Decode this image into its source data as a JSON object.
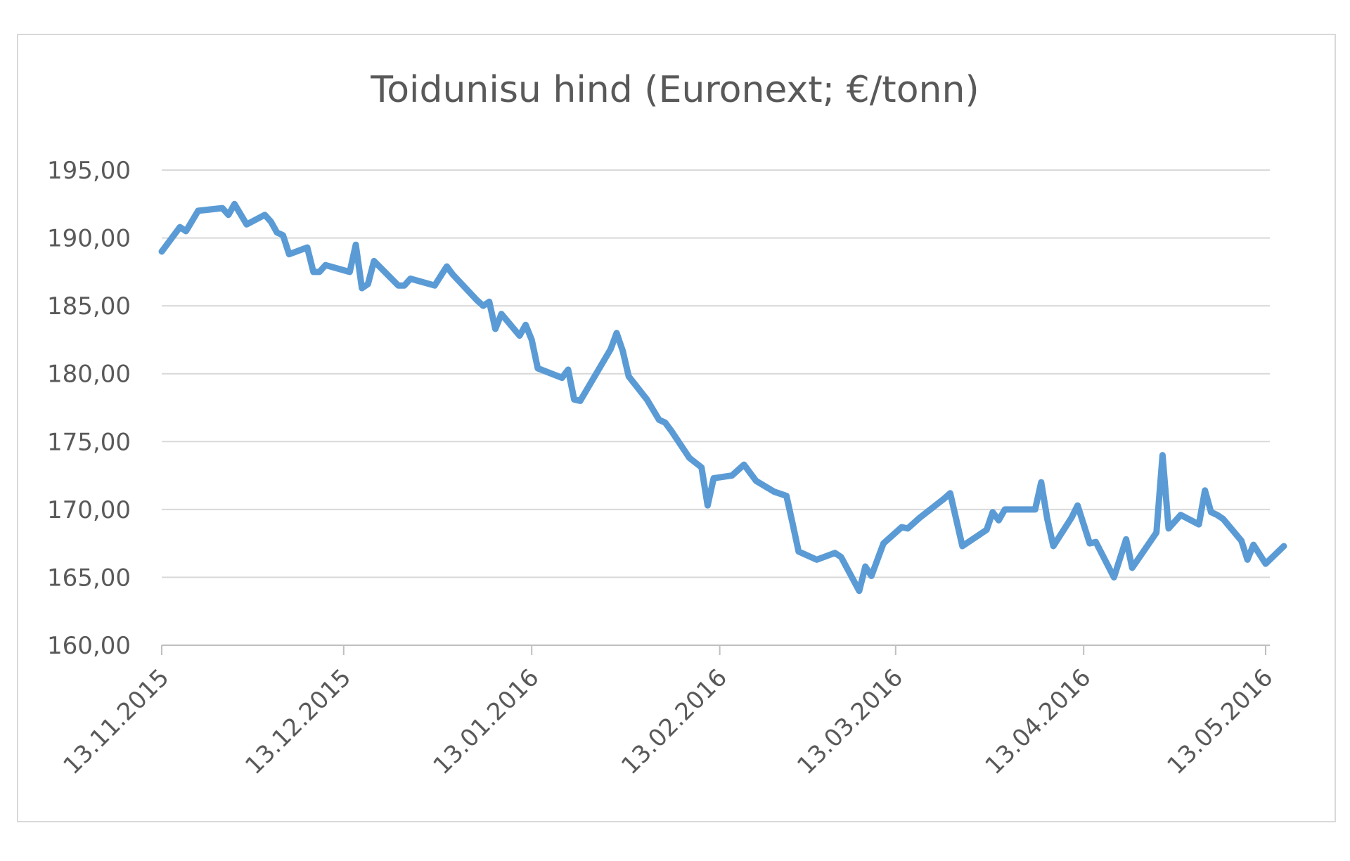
{
  "chart_data": {
    "type": "line",
    "title": "Toidunisu hind (Euronext; €/tonn)",
    "xlabel": "",
    "ylabel": "",
    "ylim": [
      160,
      195
    ],
    "yticks": [
      "195,00",
      "190,00",
      "185,00",
      "180,00",
      "175,00",
      "170,00",
      "165,00",
      "160,00"
    ],
    "ytick_values": [
      195,
      190,
      185,
      180,
      175,
      170,
      165,
      160
    ],
    "xlim": [
      "2015-11-13",
      "2016-05-13"
    ],
    "xticks": [
      {
        "date": "2015-11-13",
        "label": "13.11.2015"
      },
      {
        "date": "2015-12-13",
        "label": "13.12.2015"
      },
      {
        "date": "2016-01-13",
        "label": "13.01.2016"
      },
      {
        "date": "2016-02-13",
        "label": "13.02.2016"
      },
      {
        "date": "2016-03-13",
        "label": "13.03.2016"
      },
      {
        "date": "2016-04-13",
        "label": "13.04.2016"
      },
      {
        "date": "2016-05-13",
        "label": "13.05.2016"
      }
    ],
    "grid": true,
    "line_color": "#5b9bd5",
    "series": [
      {
        "points": [
          [
            "2015-11-13",
            189.0
          ],
          [
            "2015-11-16",
            190.8
          ],
          [
            "2015-11-17",
            190.5
          ],
          [
            "2015-11-19",
            192.0
          ],
          [
            "2015-11-23",
            192.2
          ],
          [
            "2015-11-24",
            191.7
          ],
          [
            "2015-11-25",
            192.5
          ],
          [
            "2015-11-27",
            191.0
          ],
          [
            "2015-11-30",
            191.7
          ],
          [
            "2015-12-01",
            191.2
          ],
          [
            "2015-12-02",
            190.4
          ],
          [
            "2015-12-03",
            190.2
          ],
          [
            "2015-12-04",
            188.8
          ],
          [
            "2015-12-07",
            189.3
          ],
          [
            "2015-12-08",
            187.5
          ],
          [
            "2015-12-09",
            187.5
          ],
          [
            "2015-12-10",
            188.0
          ],
          [
            "2015-12-14",
            187.5
          ],
          [
            "2015-12-15",
            189.5
          ],
          [
            "2015-12-16",
            186.3
          ],
          [
            "2015-12-17",
            186.6
          ],
          [
            "2015-12-18",
            188.3
          ],
          [
            "2015-12-22",
            186.5
          ],
          [
            "2015-12-23",
            186.5
          ],
          [
            "2015-12-24",
            187.0
          ],
          [
            "2015-12-28",
            186.5
          ],
          [
            "2015-12-30",
            187.9
          ],
          [
            "2015-12-31",
            187.3
          ],
          [
            "2016-01-04",
            185.4
          ],
          [
            "2016-01-05",
            185.0
          ],
          [
            "2016-01-06",
            185.3
          ],
          [
            "2016-01-07",
            183.3
          ],
          [
            "2016-01-08",
            184.4
          ],
          [
            "2016-01-11",
            182.8
          ],
          [
            "2016-01-12",
            183.6
          ],
          [
            "2016-01-13",
            182.5
          ],
          [
            "2016-01-14",
            180.4
          ],
          [
            "2016-01-18",
            179.7
          ],
          [
            "2016-01-19",
            180.3
          ],
          [
            "2016-01-20",
            178.1
          ],
          [
            "2016-01-21",
            178.0
          ],
          [
            "2016-01-26",
            181.8
          ],
          [
            "2016-01-27",
            183.0
          ],
          [
            "2016-01-28",
            181.7
          ],
          [
            "2016-01-29",
            179.8
          ],
          [
            "2016-02-01",
            178.1
          ],
          [
            "2016-02-03",
            176.6
          ],
          [
            "2016-02-04",
            176.4
          ],
          [
            "2016-02-05",
            175.8
          ],
          [
            "2016-02-08",
            173.8
          ],
          [
            "2016-02-10",
            173.1
          ],
          [
            "2016-02-11",
            170.3
          ],
          [
            "2016-02-12",
            172.3
          ],
          [
            "2016-02-15",
            172.5
          ],
          [
            "2016-02-17",
            173.3
          ],
          [
            "2016-02-19",
            172.1
          ],
          [
            "2016-02-22",
            171.3
          ],
          [
            "2016-02-24",
            171.0
          ],
          [
            "2016-02-25",
            169.0
          ],
          [
            "2016-02-26",
            166.9
          ],
          [
            "2016-02-29",
            166.3
          ],
          [
            "2016-03-03",
            166.8
          ],
          [
            "2016-03-04",
            166.5
          ],
          [
            "2016-03-07",
            164.0
          ],
          [
            "2016-03-08",
            165.8
          ],
          [
            "2016-03-09",
            165.1
          ],
          [
            "2016-03-11",
            167.5
          ],
          [
            "2016-03-14",
            168.7
          ],
          [
            "2016-03-15",
            168.6
          ],
          [
            "2016-03-17",
            169.4
          ],
          [
            "2016-03-21",
            170.8
          ],
          [
            "2016-03-22",
            171.2
          ],
          [
            "2016-03-24",
            167.3
          ],
          [
            "2016-03-28",
            168.5
          ],
          [
            "2016-03-29",
            169.8
          ],
          [
            "2016-03-30",
            169.2
          ],
          [
            "2016-03-31",
            170.0
          ],
          [
            "2016-04-04",
            170.0
          ],
          [
            "2016-04-05",
            170.0
          ],
          [
            "2016-04-06",
            172.0
          ],
          [
            "2016-04-07",
            169.3
          ],
          [
            "2016-04-08",
            167.3
          ],
          [
            "2016-04-11",
            169.4
          ],
          [
            "2016-04-12",
            170.3
          ],
          [
            "2016-04-14",
            167.5
          ],
          [
            "2016-04-15",
            167.6
          ],
          [
            "2016-04-18",
            165.0
          ],
          [
            "2016-04-20",
            167.8
          ],
          [
            "2016-04-21",
            165.7
          ],
          [
            "2016-04-25",
            168.3
          ],
          [
            "2016-04-26",
            174.0
          ],
          [
            "2016-04-27",
            168.6
          ],
          [
            "2016-04-29",
            169.6
          ],
          [
            "2016-05-02",
            168.9
          ],
          [
            "2016-05-03",
            171.4
          ],
          [
            "2016-05-04",
            169.8
          ],
          [
            "2016-05-05",
            169.6
          ],
          [
            "2016-05-06",
            169.3
          ],
          [
            "2016-05-09",
            167.7
          ],
          [
            "2016-05-10",
            166.3
          ],
          [
            "2016-05-11",
            167.4
          ],
          [
            "2016-05-13",
            166.0
          ],
          [
            "2016-05-16",
            167.3
          ]
        ]
      }
    ]
  }
}
